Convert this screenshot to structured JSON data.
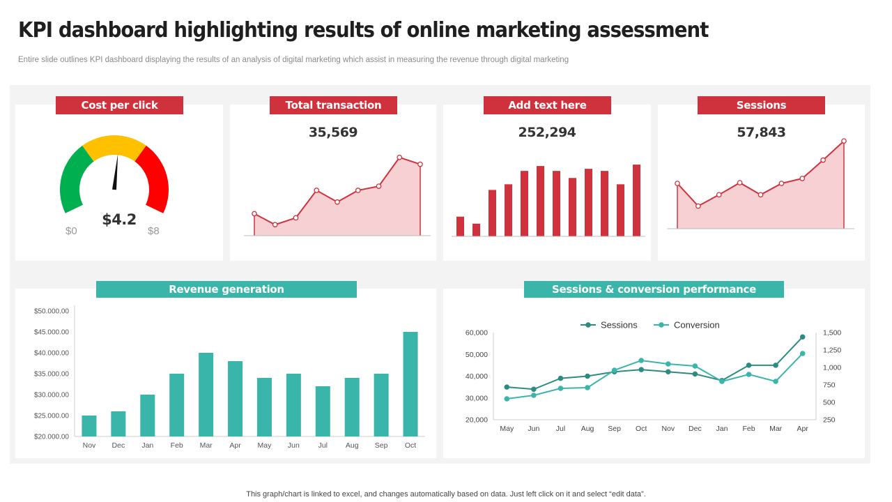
{
  "header": {
    "title": "KPI dashboard highlighting results of online marketing assessment",
    "subtitle": "Entire slide outlines KPI dashboard displaying the results of an analysis of digital marketing which assist in measuring the revenue through digital marketing"
  },
  "footnote": "This graph/chart is linked to excel, and changes automatically based on data. Just left click on it and select “edit data”.",
  "colors": {
    "red": "#d0323d",
    "teal": "#3ab5aa",
    "teal_dark": "#2e8b7f",
    "area_fill": "#f6d0d3",
    "gauge_green": "#00b050",
    "gauge_yellow": "#ffc000",
    "gauge_red": "#ff0000"
  },
  "cards": {
    "cpc": {
      "label": "Cost per click",
      "value": "$4.2",
      "min_label": "$0",
      "max_label": "$8"
    },
    "transaction": {
      "label": "Total transaction",
      "value": "35,569"
    },
    "addtext": {
      "label": "Add text here",
      "value": "252,294"
    },
    "sessions": {
      "label": "Sessions",
      "value": "57,843"
    },
    "revenue": {
      "label": "Revenue generation"
    },
    "performance": {
      "label": "Sessions & conversion performance"
    }
  },
  "chart_data": [
    {
      "id": "cpc_gauge",
      "type": "gauge",
      "title": "Cost per click",
      "min": 0,
      "max": 8,
      "value": 4.2,
      "bands": [
        "green",
        "yellow",
        "red"
      ]
    },
    {
      "id": "transaction_spark",
      "type": "area",
      "title": "Total transaction",
      "values": [
        32,
        16,
        26,
        66,
        49,
        66,
        72,
        114,
        104
      ],
      "ylim": [
        0,
        130
      ]
    },
    {
      "id": "addtext_bars",
      "type": "bar",
      "title": "Add text here",
      "values": [
        28,
        18,
        66,
        74,
        93,
        100,
        93,
        83,
        96,
        93,
        74,
        102
      ],
      "ylim": [
        0,
        110
      ]
    },
    {
      "id": "sessions_spark",
      "type": "area",
      "title": "Sessions",
      "values": [
        64,
        32,
        48,
        65,
        48,
        64,
        71,
        97,
        124
      ],
      "ylim": [
        0,
        140
      ]
    },
    {
      "id": "revenue_generation",
      "type": "bar",
      "title": "Revenue generation",
      "categories": [
        "Nov",
        "Dec",
        "Jan",
        "Feb",
        "Mar",
        "Apr",
        "May",
        "Jun",
        "Jul",
        "Aug",
        "Sep",
        "Oct"
      ],
      "values": [
        25000,
        26000,
        30000,
        35000,
        40000,
        38000,
        34000,
        35000,
        32000,
        34000,
        35000,
        45000
      ],
      "ylim": [
        20000,
        50000
      ],
      "yticks": [
        20000,
        25000,
        30000,
        35000,
        40000,
        45000,
        50000
      ],
      "ytick_labels": [
        "$20.000.00",
        "$25.000.00",
        "$30.000.00",
        "$35.000.00",
        "$40.000.00",
        "$45.000.00",
        "$50.000.00"
      ]
    },
    {
      "id": "sessions_conversion",
      "type": "line",
      "title": "Sessions & conversion performance",
      "categories": [
        "May",
        "Jun",
        "Jul",
        "Aug",
        "Sep",
        "Oct",
        "Nov",
        "Dec",
        "Jan",
        "Feb",
        "Mar",
        "Apr"
      ],
      "series": [
        {
          "name": "Sessions",
          "axis": "left",
          "values": [
            35000,
            34000,
            39000,
            40000,
            42000,
            43000,
            42000,
            41000,
            38000,
            45000,
            45000,
            58000
          ]
        },
        {
          "name": "Conversion",
          "axis": "right",
          "values": [
            550,
            600,
            700,
            710,
            960,
            1100,
            1050,
            1020,
            800,
            900,
            800,
            1200
          ]
        }
      ],
      "ylim_left": [
        20000,
        60000
      ],
      "yticks_left": [
        "20,000",
        "30,000",
        "40,000",
        "50,000",
        "60,000"
      ],
      "ylim_right": [
        250,
        1500
      ],
      "yticks_right": [
        "250",
        "500",
        "750",
        "1,000",
        "1,250",
        "1,500"
      ],
      "legend": "top-center"
    }
  ]
}
